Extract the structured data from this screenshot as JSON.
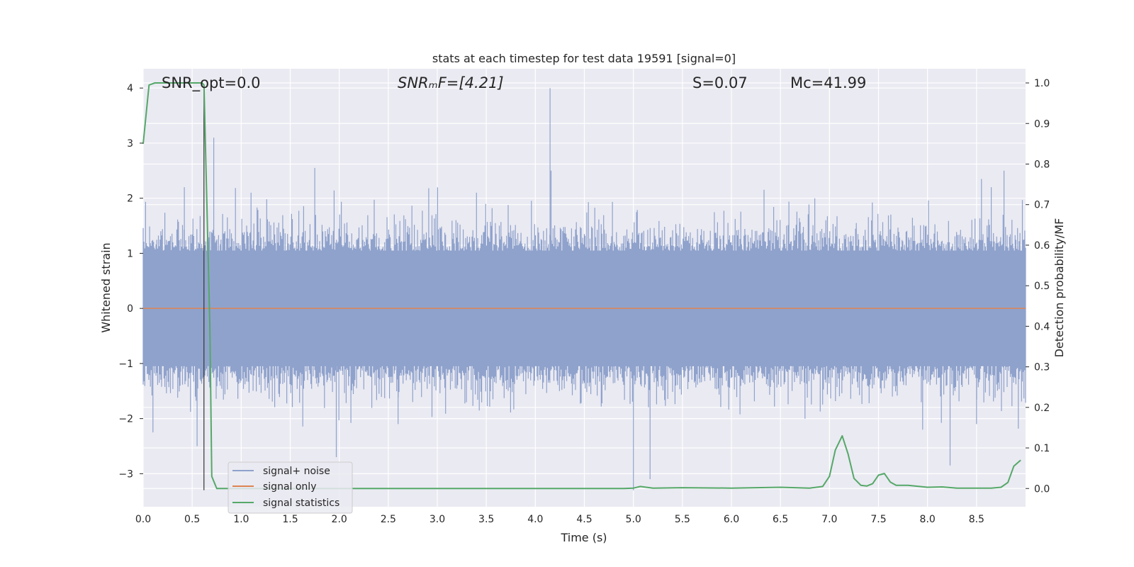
{
  "chart_data": {
    "type": "line",
    "title": "stats at each timestep for test data 19591 [signal=0]",
    "xlabel": "Time (s)",
    "ylabel_left": "Whitened strain",
    "ylabel_right": "Detection probability/MF",
    "xlim": [
      0.0,
      9.0
    ],
    "ylim_left": [
      -3.6,
      4.35
    ],
    "ylim_right": [
      -0.045,
      1.035
    ],
    "x_ticks": [
      0.0,
      0.5,
      1.0,
      1.5,
      2.0,
      2.5,
      3.0,
      3.5,
      4.0,
      4.5,
      5.0,
      5.5,
      6.0,
      6.5,
      7.0,
      7.5,
      8.0,
      8.5
    ],
    "x_tick_labels": [
      "0.0",
      "0.5",
      "1.0",
      "1.5",
      "2.0",
      "2.5",
      "3.0",
      "3.5",
      "4.0",
      "4.5",
      "5.0",
      "5.5",
      "6.0",
      "6.5",
      "7.0",
      "7.5",
      "8.0",
      "8.5"
    ],
    "y_left_ticks": [
      -3,
      -2,
      -1,
      0,
      1,
      2,
      3,
      4
    ],
    "y_left_tick_labels": [
      "−3",
      "−2",
      "−1",
      "0",
      "1",
      "2",
      "3",
      "4"
    ],
    "y_right_ticks": [
      0.0,
      0.1,
      0.2,
      0.3,
      0.4,
      0.5,
      0.6,
      0.7,
      0.8,
      0.9,
      1.0
    ],
    "y_right_tick_labels": [
      "0.0",
      "0.1",
      "0.2",
      "0.3",
      "0.4",
      "0.5",
      "0.6",
      "0.7",
      "0.8",
      "0.9",
      "1.0"
    ],
    "grid": true,
    "legend_position": "lower-left",
    "annotations": [
      {
        "id": "snr-opt",
        "text": "SNR_opt=0.0"
      },
      {
        "id": "snr-mf",
        "text": "SNRₘF=[4.21]"
      },
      {
        "id": "s-value",
        "text": "S=0.07"
      },
      {
        "id": "mc-value",
        "text": "Mc=41.99"
      }
    ],
    "vertical_marker_x": 0.62,
    "series": [
      {
        "name": "signal+ noise",
        "axis": "left",
        "color": "#8fa2cc",
        "style": "noise",
        "spikes": [
          [
            0.55,
            -2.5
          ],
          [
            0.72,
            3.1
          ],
          [
            1.75,
            2.55
          ],
          [
            1.97,
            -2.7
          ],
          [
            4.15,
            4.0
          ],
          [
            4.16,
            2.5
          ],
          [
            5.0,
            -3.3
          ],
          [
            5.17,
            -3.1
          ],
          [
            8.23,
            -2.85
          ],
          [
            8.78,
            2.5
          ],
          [
            8.55,
            2.35
          ],
          [
            0.1,
            -2.25
          ],
          [
            2.6,
            -2.1
          ],
          [
            7.95,
            -2.2
          ],
          [
            8.5,
            -2.1
          ],
          [
            1.1,
            2.1
          ],
          [
            3.4,
            2.1
          ],
          [
            6.85,
            2.0
          ],
          [
            8.65,
            2.2
          ],
          [
            0.42,
            2.2
          ]
        ]
      },
      {
        "name": "signal only",
        "axis": "left",
        "color": "#dd8452",
        "values": [
          [
            0.0,
            0.0
          ],
          [
            9.0,
            0.0
          ]
        ]
      },
      {
        "name": "signal statistics",
        "axis": "right",
        "color": "#55a868",
        "values": [
          [
            0.0,
            0.85
          ],
          [
            0.06,
            0.995
          ],
          [
            0.12,
            1.0
          ],
          [
            0.4,
            1.0
          ],
          [
            0.6,
            1.0
          ],
          [
            0.62,
            0.995
          ],
          [
            0.68,
            0.4
          ],
          [
            0.7,
            0.03
          ],
          [
            0.75,
            0.0
          ],
          [
            2.0,
            0.0
          ],
          [
            4.5,
            0.0
          ],
          [
            4.9,
            0.0
          ],
          [
            5.0,
            0.001
          ],
          [
            5.07,
            0.005
          ],
          [
            5.2,
            0.001
          ],
          [
            5.5,
            0.002
          ],
          [
            6.0,
            0.001
          ],
          [
            6.5,
            0.003
          ],
          [
            6.8,
            0.001
          ],
          [
            6.93,
            0.005
          ],
          [
            7.0,
            0.03
          ],
          [
            7.06,
            0.095
          ],
          [
            7.13,
            0.13
          ],
          [
            7.19,
            0.085
          ],
          [
            7.25,
            0.025
          ],
          [
            7.32,
            0.008
          ],
          [
            7.38,
            0.006
          ],
          [
            7.44,
            0.012
          ],
          [
            7.5,
            0.033
          ],
          [
            7.56,
            0.037
          ],
          [
            7.62,
            0.016
          ],
          [
            7.68,
            0.008
          ],
          [
            7.8,
            0.008
          ],
          [
            8.0,
            0.003
          ],
          [
            8.15,
            0.004
          ],
          [
            8.3,
            0.001
          ],
          [
            8.5,
            0.001
          ],
          [
            8.65,
            0.001
          ],
          [
            8.75,
            0.003
          ],
          [
            8.82,
            0.015
          ],
          [
            8.88,
            0.055
          ],
          [
            8.95,
            0.07
          ]
        ]
      }
    ]
  }
}
